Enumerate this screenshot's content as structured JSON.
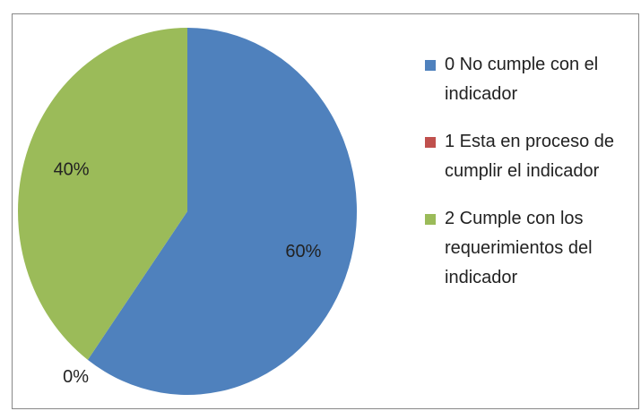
{
  "chart_data": {
    "type": "pie",
    "categories": [
      "0 No cumple con el indicador",
      "1 Esta en proceso de cumplir el indicador",
      "2 Cumple con los requerimientos del indicador"
    ],
    "values": [
      60,
      0,
      40
    ],
    "value_labels": [
      "60%",
      "0%",
      "40%"
    ],
    "colors": [
      "#4f81bd",
      "#c0504d",
      "#9bbb59"
    ],
    "legend": "right"
  }
}
